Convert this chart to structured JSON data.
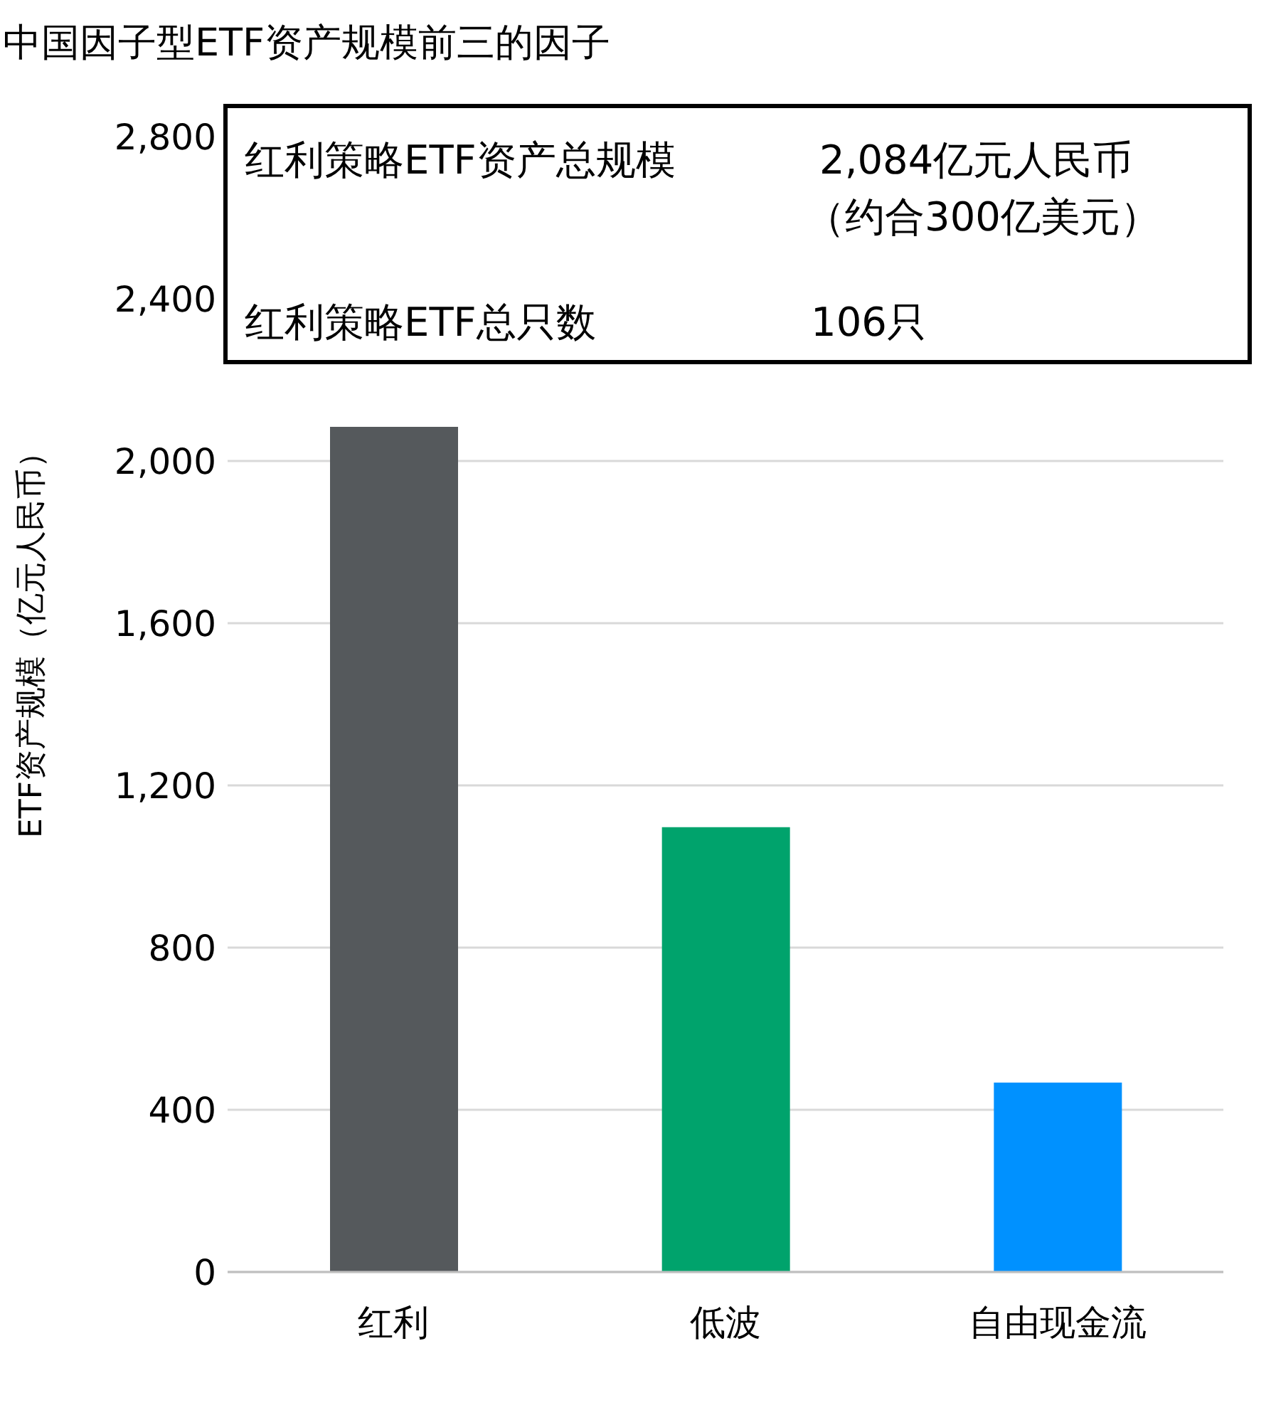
{
  "chart_data": {
    "type": "bar",
    "title": "中国因子型ETF资产规模前三的因子",
    "ylabel": "ETF资产规模（亿元人民币）",
    "categories": [
      "红利",
      "低波",
      "自由现金流"
    ],
    "values": [
      2084,
      1097,
      467
    ],
    "colors": [
      "#55595c",
      "#00a36c",
      "#0091ff"
    ],
    "ylim": [
      0,
      2800
    ],
    "yticks": [
      0,
      400,
      800,
      {
        "value": 1200,
        "label": "1,200"
      },
      {
        "value": 1600,
        "label": "1,600"
      },
      {
        "value": 2000,
        "label": "2,000"
      },
      {
        "value": 2400,
        "label": "2,400"
      },
      {
        "value": 2800,
        "label": "2,800"
      }
    ],
    "grid": "y",
    "annotations": [
      "红利策略ETF资产总规模",
      "2,084亿元人民币",
      "（约合300亿美元）",
      "红利策略ETF总只数",
      "106只"
    ]
  }
}
